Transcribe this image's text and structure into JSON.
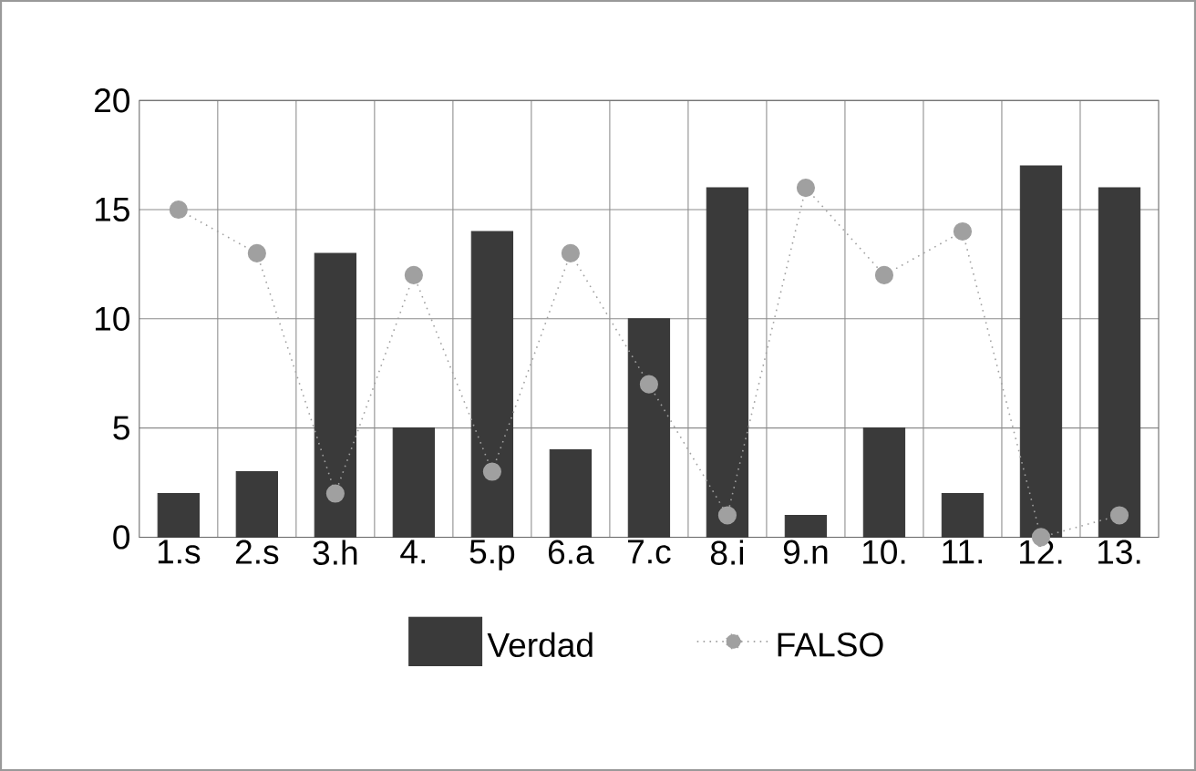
{
  "chart_data": {
    "type": "bar",
    "categories": [
      "1.s",
      "2.s",
      "3.h",
      "4.",
      "5.p",
      "6.a",
      "7.c",
      "8.i",
      "9.n",
      "10.",
      "11.",
      "12.",
      "13."
    ],
    "series": [
      {
        "name": "Verdad",
        "color": "#3a3a3a",
        "values": [
          2,
          3,
          13,
          5,
          14,
          4,
          10,
          16,
          1,
          5,
          2,
          17,
          16
        ]
      },
      {
        "name": "FALSO",
        "type": "line",
        "color": "#a0a0a0",
        "marker": "circle",
        "line_style": "dotted",
        "values": [
          15,
          13,
          2,
          12,
          3,
          13,
          7,
          1,
          16,
          12,
          14,
          0,
          1
        ]
      }
    ],
    "ylim": [
      0,
      20
    ],
    "yticks": [
      0,
      5,
      10,
      15,
      20
    ],
    "grid": true,
    "legend": "bottom"
  }
}
